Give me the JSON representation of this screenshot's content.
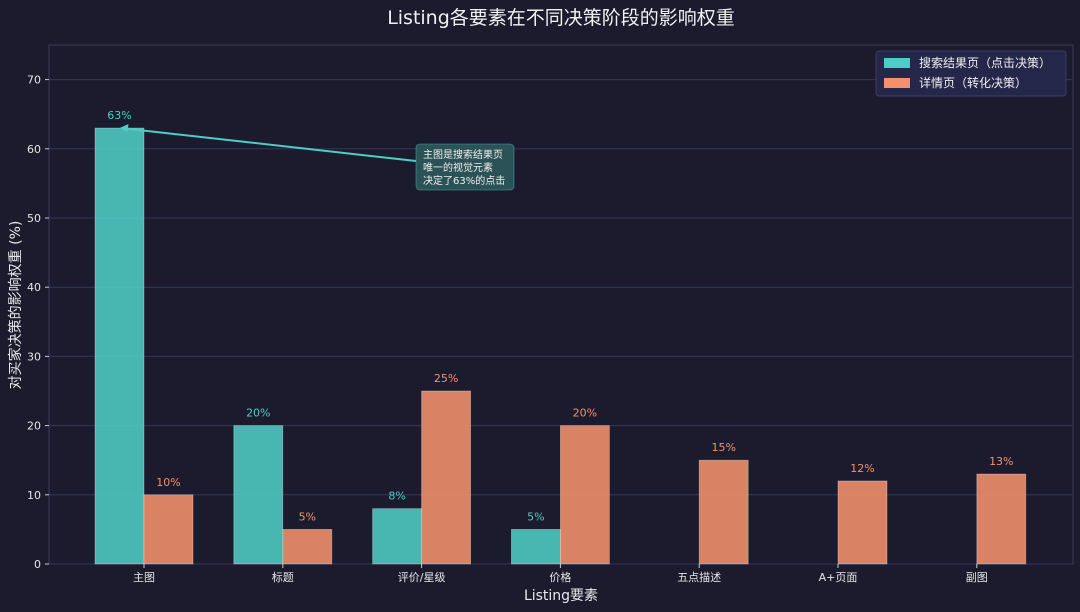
{
  "chart_data": {
    "type": "bar",
    "title": "Listing各要素在不同决策阶段的影响权重",
    "xlabel": "Listing要素",
    "ylabel": "对买家决策的影响权重 (%)",
    "ylim": [
      0,
      75
    ],
    "yticks": [
      0,
      10,
      20,
      30,
      40,
      50,
      60,
      70
    ],
    "grid": true,
    "legend_position": "top-right",
    "categories": [
      "主图",
      "标题",
      "评价/星级",
      "价格",
      "五点描述",
      "A+页面",
      "副图"
    ],
    "series": [
      {
        "name": "搜索结果页（点击决策）",
        "color": "#4ecdc4",
        "values": [
          63,
          20,
          8,
          5,
          null,
          null,
          null
        ],
        "labels": [
          "63%",
          "20%",
          "8%",
          "5%",
          null,
          null,
          null
        ]
      },
      {
        "name": "详情页（转化决策）",
        "color": "#f4916c",
        "values": [
          10,
          5,
          25,
          20,
          15,
          12,
          13
        ],
        "labels": [
          "10%",
          "5%",
          "25%",
          "20%",
          "15%",
          "12%",
          "13%"
        ]
      }
    ],
    "annotation": {
      "lines": [
        "主图是搜索结果页",
        "唯一的视觉元素",
        "决定了63%的点击"
      ],
      "target_category": "主图",
      "target_value": 63
    }
  }
}
